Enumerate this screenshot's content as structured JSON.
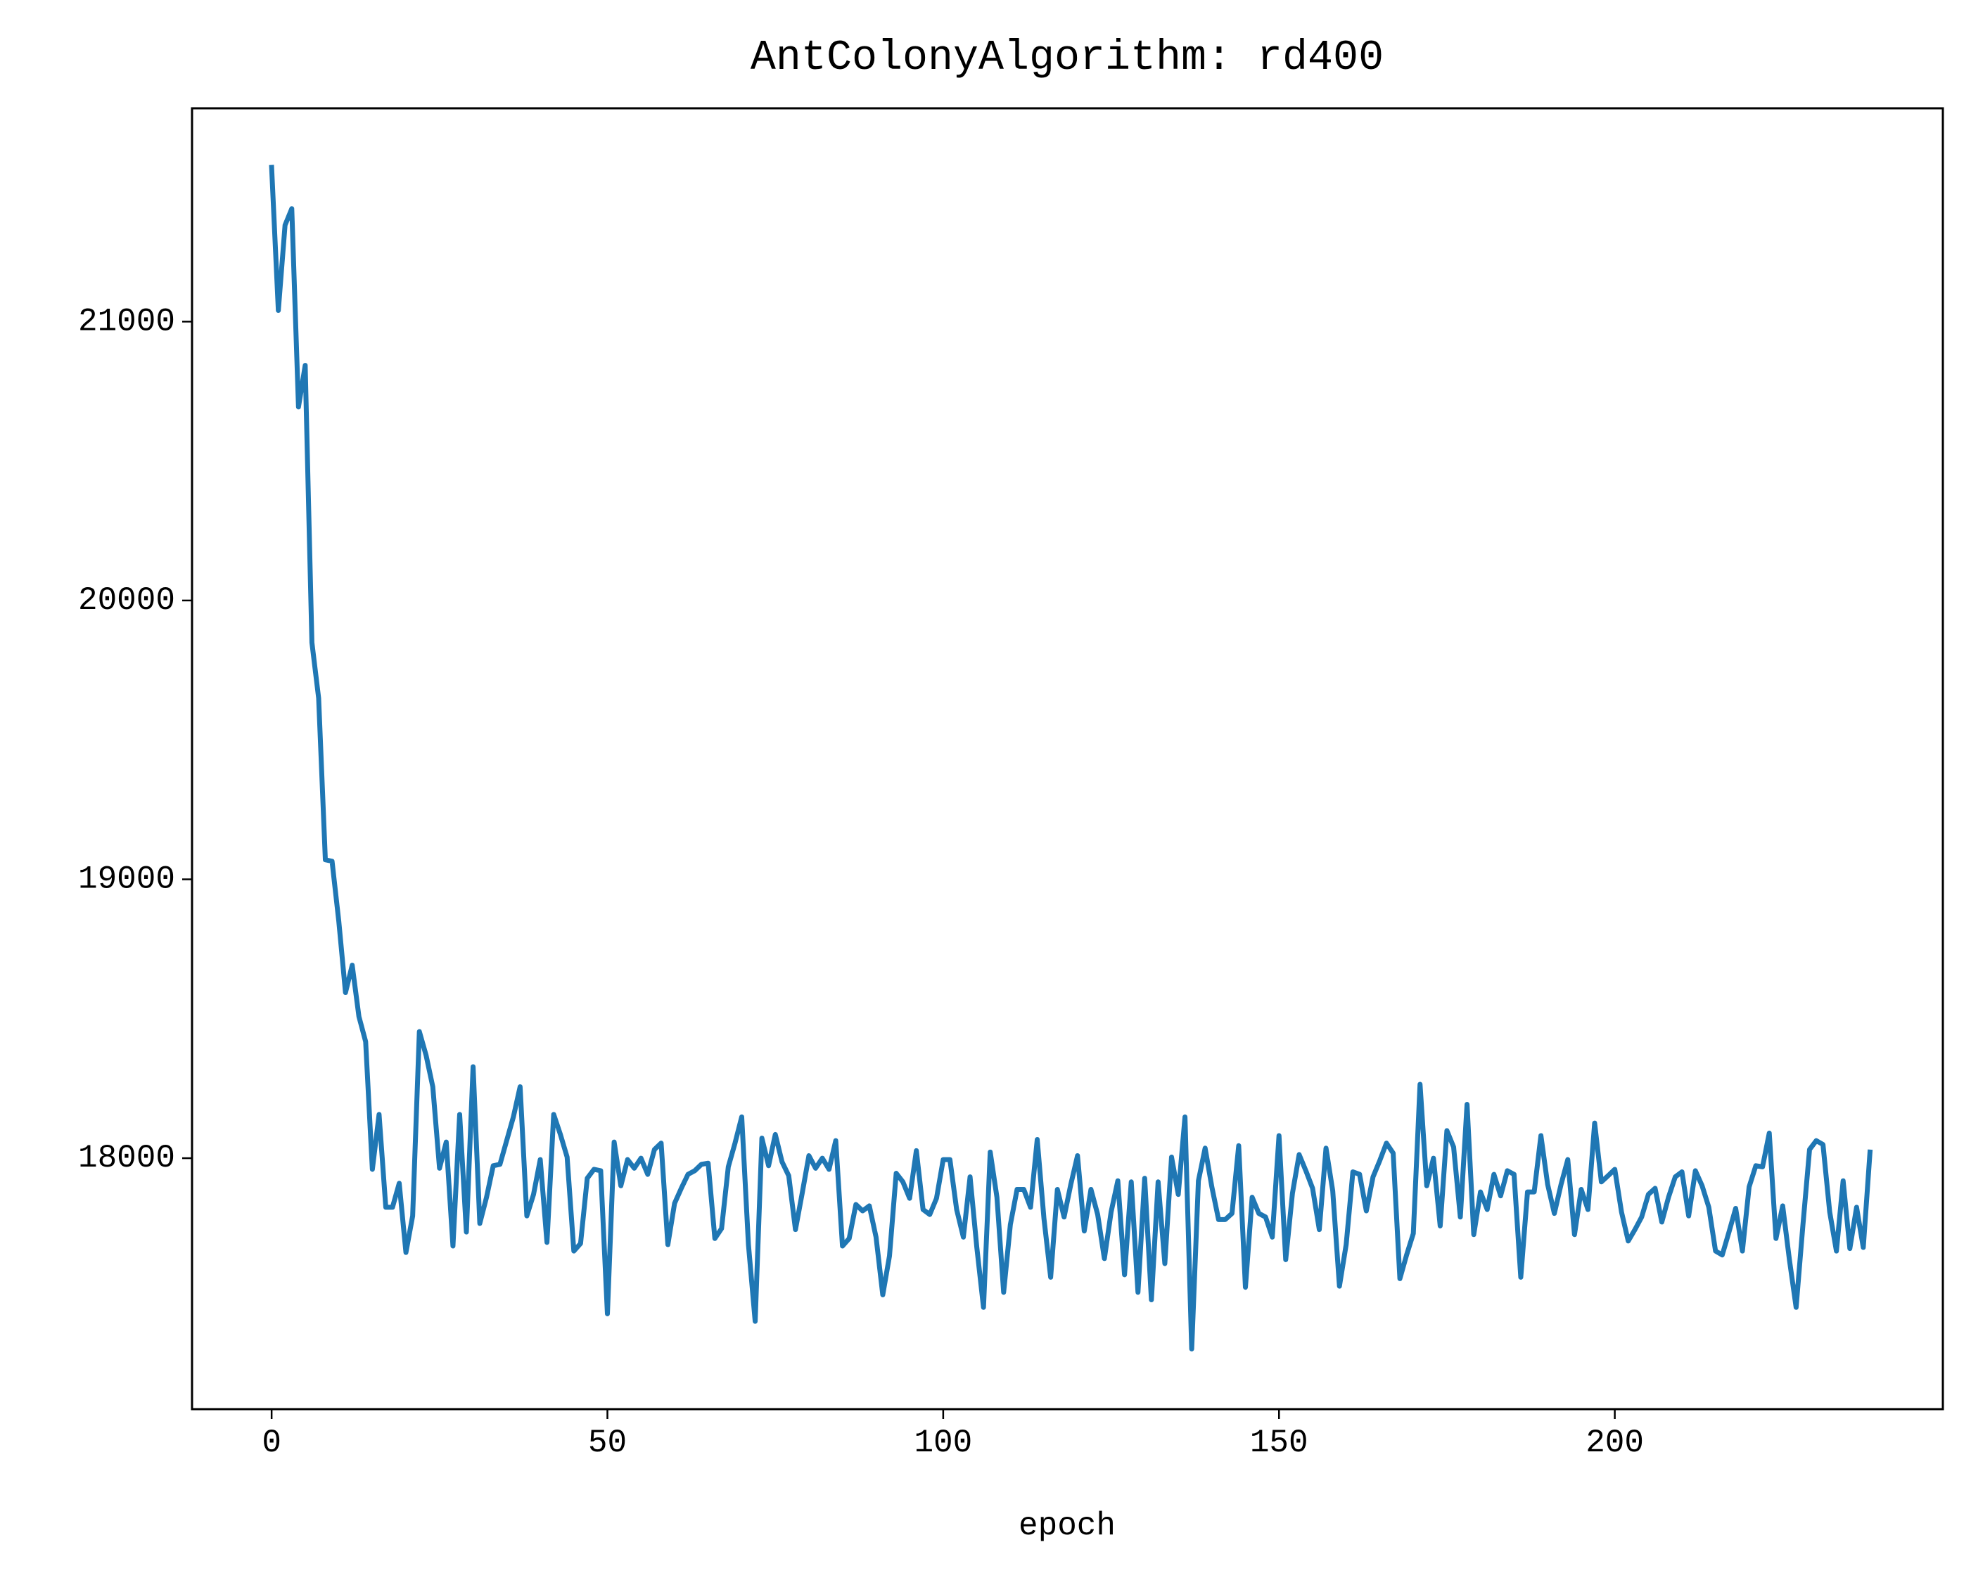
{
  "chart_data": {
    "type": "line",
    "title": "AntColonyAlgorithm: rd400",
    "xlabel": "epoch",
    "color": "#1f77b4",
    "values": [
      21553,
      21040,
      21346,
      21405,
      20694,
      20843,
      19849,
      19650,
      19070,
      19065,
      18850,
      18594,
      18692,
      18508,
      18418,
      17960,
      18157,
      17824,
      17824,
      17910,
      17662,
      17793,
      18454,
      18369,
      18256,
      17964,
      18058,
      17685,
      18157,
      17735,
      18328,
      17766,
      17860,
      17973,
      17978,
      18063,
      18148,
      18256,
      17793,
      17870,
      17995,
      17698,
      18157,
      18085,
      18004,
      17667,
      17694,
      17928,
      17960,
      17955,
      17442,
      18058,
      17901,
      17995,
      17964,
      18000,
      17942,
      18031,
      18054,
      17690,
      17838,
      17892,
      17942,
      17955,
      17978,
      17982,
      17712,
      17748,
      17969,
      18054,
      18148,
      17690,
      17415,
      18072,
      17973,
      18085,
      17987,
      17937,
      17744,
      17874,
      18009,
      17964,
      18000,
      17960,
      18063,
      17685,
      17712,
      17834,
      17811,
      17829,
      17717,
      17510,
      17649,
      17946,
      17915,
      17856,
      18027,
      17816,
      17798,
      17856,
      17995,
      17995,
      17816,
      17717,
      17933,
      17681,
      17465,
      18022,
      17860,
      17519,
      17762,
      17888,
      17888,
      17824,
      18067,
      17784,
      17573,
      17888,
      17789,
      17906,
      18009,
      17739,
      17888,
      17798,
      17640,
      17807,
      17919,
      17582,
      17915,
      17519,
      17928,
      17492,
      17915,
      17622,
      18004,
      17870,
      18148,
      17316,
      17919,
      18036,
      17897,
      17780,
      17780,
      17802,
      18045,
      17537,
      17860,
      17802,
      17789,
      17717,
      18081,
      17636,
      17874,
      18013,
      17955,
      17892,
      17744,
      18036,
      17883,
      17541,
      17690,
      17951,
      17942,
      17811,
      17933,
      17991,
      18054,
      18018,
      17568,
      17653,
      17730,
      18265,
      17901,
      18000,
      17757,
      18099,
      18040,
      17789,
      18193,
      17726,
      17879,
      17816,
      17942,
      17865,
      17955,
      17942,
      17573,
      17879,
      17879,
      18081,
      17906,
      17802,
      17906,
      17995,
      17726,
      17888,
      17816,
      18126,
      17915,
      17937,
      17960,
      17807,
      17703,
      17744,
      17789,
      17870,
      17892,
      17771,
      17860,
      17933,
      17951,
      17793,
      17955,
      17901,
      17824,
      17667,
      17653,
      17735,
      17820,
      17667,
      17897,
      17973,
      17969,
      18090,
      17712,
      17829,
      17636,
      17465,
      17757,
      18031,
      18063,
      18049,
      17807,
      17667,
      17919,
      17676,
      17824,
      17680,
      18022
    ],
    "xlim": [
      -11.85,
      248.85
    ],
    "xticks": [
      0,
      50,
      100,
      150,
      200
    ],
    "ylim": [
      17100,
      21765
    ],
    "yticks": [
      18000,
      19000,
      20000,
      21000
    ],
    "grid": false
  }
}
